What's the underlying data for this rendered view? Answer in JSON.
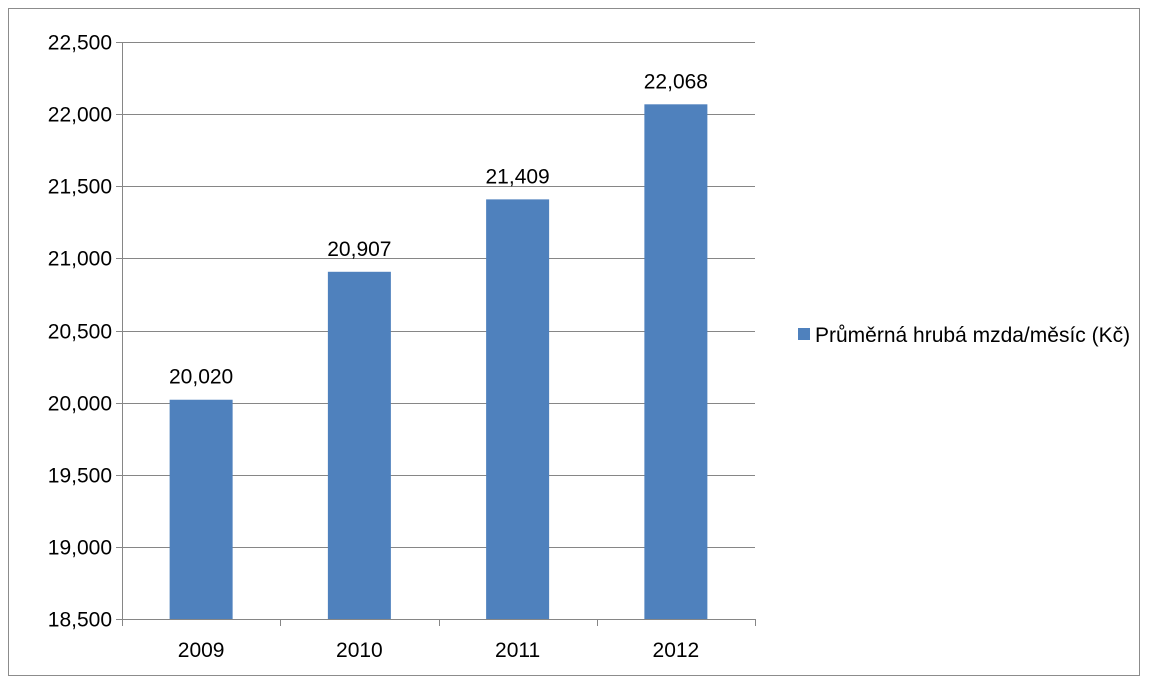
{
  "chart_data": {
    "type": "bar",
    "categories": [
      "2009",
      "2010",
      "2011",
      "2012"
    ],
    "series": [
      {
        "name": "Průměrná hrubá mzda/měsíc (Kč)",
        "values": [
          20020,
          20907,
          21409,
          22068
        ],
        "color": "#4f81bd"
      }
    ],
    "data_labels": [
      "20,020",
      "20,907",
      "21,409",
      "22,068"
    ],
    "y_tick_labels": [
      "18,500",
      "19,000",
      "19,500",
      "20,000",
      "20,500",
      "21,000",
      "21,500",
      "22,000",
      "22,500"
    ],
    "ylim": [
      18500,
      22500
    ],
    "y_step": 500,
    "title": "",
    "xlabel": "",
    "ylabel": "",
    "grid": true,
    "legend_position": "right",
    "colors": {
      "bar": "#4f81bd",
      "grid": "#868686",
      "axis": "#868686",
      "text": "#000000",
      "frame": "#8c8c8c"
    }
  }
}
